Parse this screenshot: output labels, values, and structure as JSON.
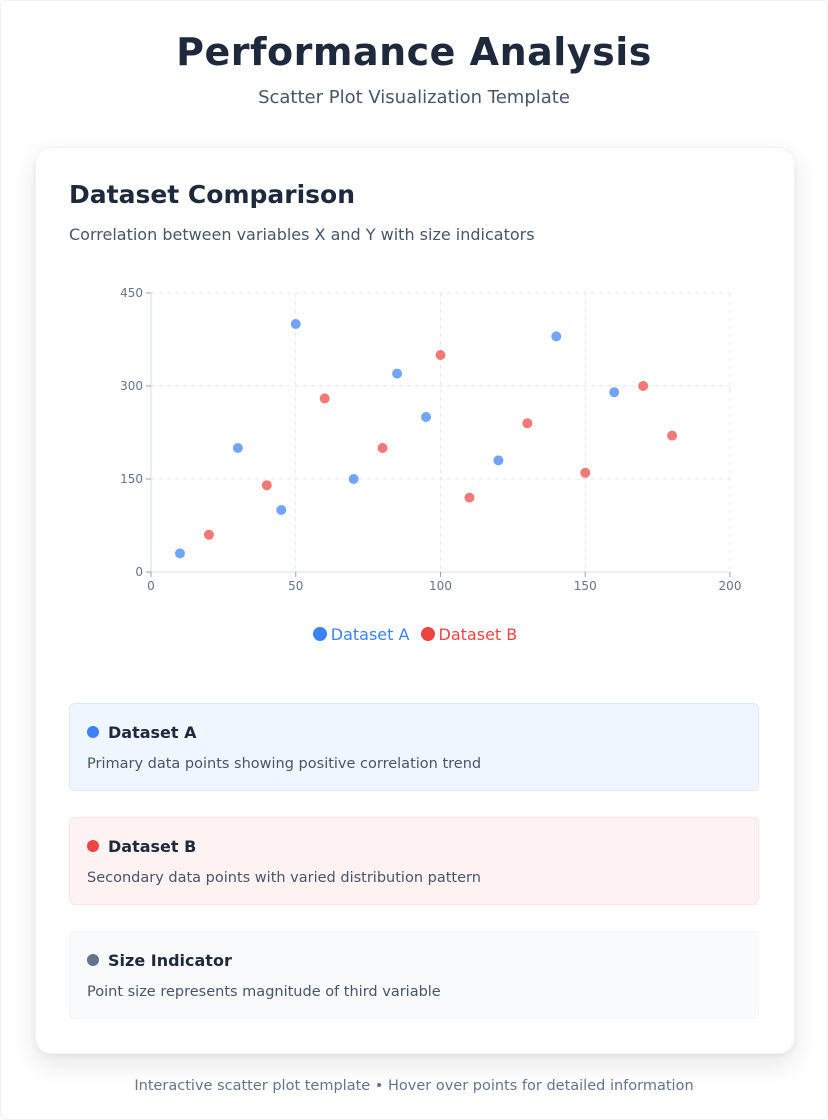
{
  "header": {
    "title": "Performance Analysis",
    "subtitle": "Scatter Plot Visualization Template"
  },
  "card": {
    "title": "Dataset Comparison",
    "subtitle": "Correlation between variables X and Y with size indicators"
  },
  "chart_data": {
    "type": "scatter",
    "title": "",
    "xlabel": "",
    "ylabel": "",
    "xlim": [
      0,
      200
    ],
    "ylim": [
      0,
      450
    ],
    "x_ticks": [
      0,
      50,
      100,
      150,
      200
    ],
    "y_ticks": [
      0,
      150,
      300,
      450
    ],
    "grid": true,
    "legend_position": "bottom-center",
    "series": [
      {
        "name": "Dataset A",
        "color": "#3b82f6",
        "points": [
          {
            "x": 10,
            "y": 30
          },
          {
            "x": 30,
            "y": 200
          },
          {
            "x": 45,
            "y": 100
          },
          {
            "x": 50,
            "y": 400
          },
          {
            "x": 70,
            "y": 150
          },
          {
            "x": 85,
            "y": 320
          },
          {
            "x": 95,
            "y": 250
          },
          {
            "x": 120,
            "y": 180
          },
          {
            "x": 140,
            "y": 380
          },
          {
            "x": 160,
            "y": 290
          }
        ]
      },
      {
        "name": "Dataset B",
        "color": "#ef4444",
        "points": [
          {
            "x": 20,
            "y": 60
          },
          {
            "x": 40,
            "y": 140
          },
          {
            "x": 60,
            "y": 280
          },
          {
            "x": 80,
            "y": 200
          },
          {
            "x": 100,
            "y": 350
          },
          {
            "x": 110,
            "y": 120
          },
          {
            "x": 130,
            "y": 240
          },
          {
            "x": 150,
            "y": 160
          },
          {
            "x": 170,
            "y": 300
          },
          {
            "x": 180,
            "y": 220
          }
        ]
      }
    ]
  },
  "legend": {
    "a_label": "Dataset A",
    "b_label": "Dataset B"
  },
  "info": {
    "a": {
      "title": "Dataset A",
      "description": "Primary data points showing positive correlation trend",
      "color": "#3b82f6"
    },
    "b": {
      "title": "Dataset B",
      "description": "Secondary data points with varied distribution pattern",
      "color": "#ef4444"
    },
    "size": {
      "title": "Size Indicator",
      "description": "Point size represents magnitude of third variable",
      "color": "#64748b"
    }
  },
  "footer": {
    "text": "Interactive scatter plot template • Hover over points for detailed information"
  }
}
